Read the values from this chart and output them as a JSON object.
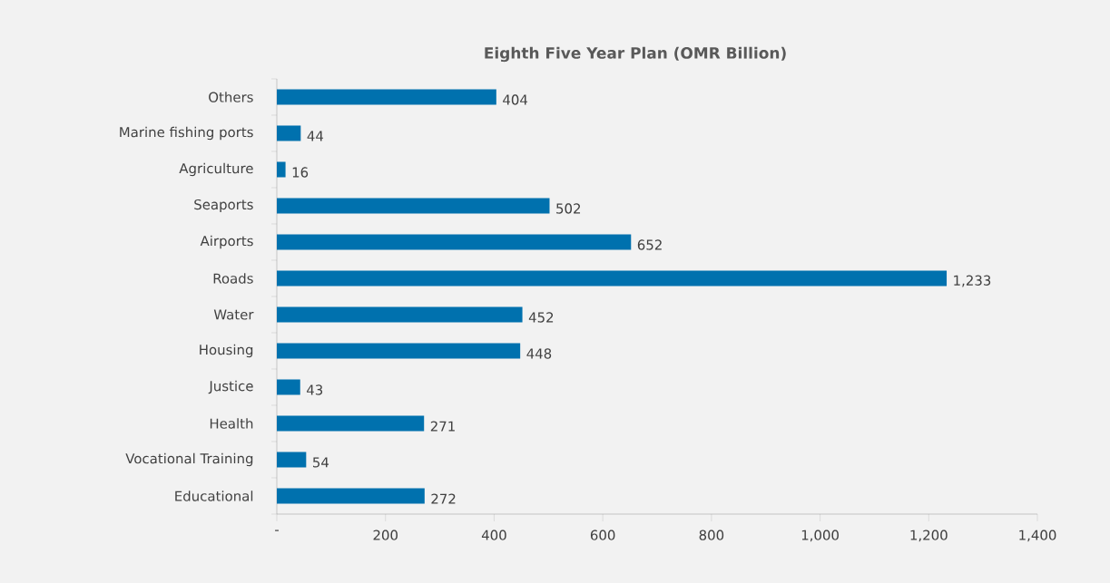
{
  "chart_data": {
    "type": "bar",
    "orientation": "horizontal",
    "title": "Eighth Five Year Plan (OMR Billion)",
    "categories": [
      "Others",
      "Marine fishing ports",
      "Agriculture",
      "Seaports",
      "Airports",
      "Roads",
      "Water",
      "Housing",
      "Justice",
      "Health",
      "Vocational Training",
      "Educational"
    ],
    "values": [
      404,
      44,
      16,
      502,
      652,
      1233,
      452,
      448,
      43,
      271,
      54,
      272
    ],
    "value_labels": [
      "404",
      "44",
      "16",
      "502",
      "652",
      "1,233",
      "452",
      "448",
      "43",
      "271",
      "54",
      "272"
    ],
    "color": "#0071ae",
    "xlim": [
      0,
      1400
    ],
    "xticks": [
      {
        "value": 0,
        "label": "-"
      },
      200,
      400,
      600,
      800,
      {
        "value": 1000,
        "label": "1,000"
      },
      {
        "value": 1200,
        "label": "1,200"
      },
      {
        "value": 1400,
        "label": "1,400"
      }
    ]
  }
}
